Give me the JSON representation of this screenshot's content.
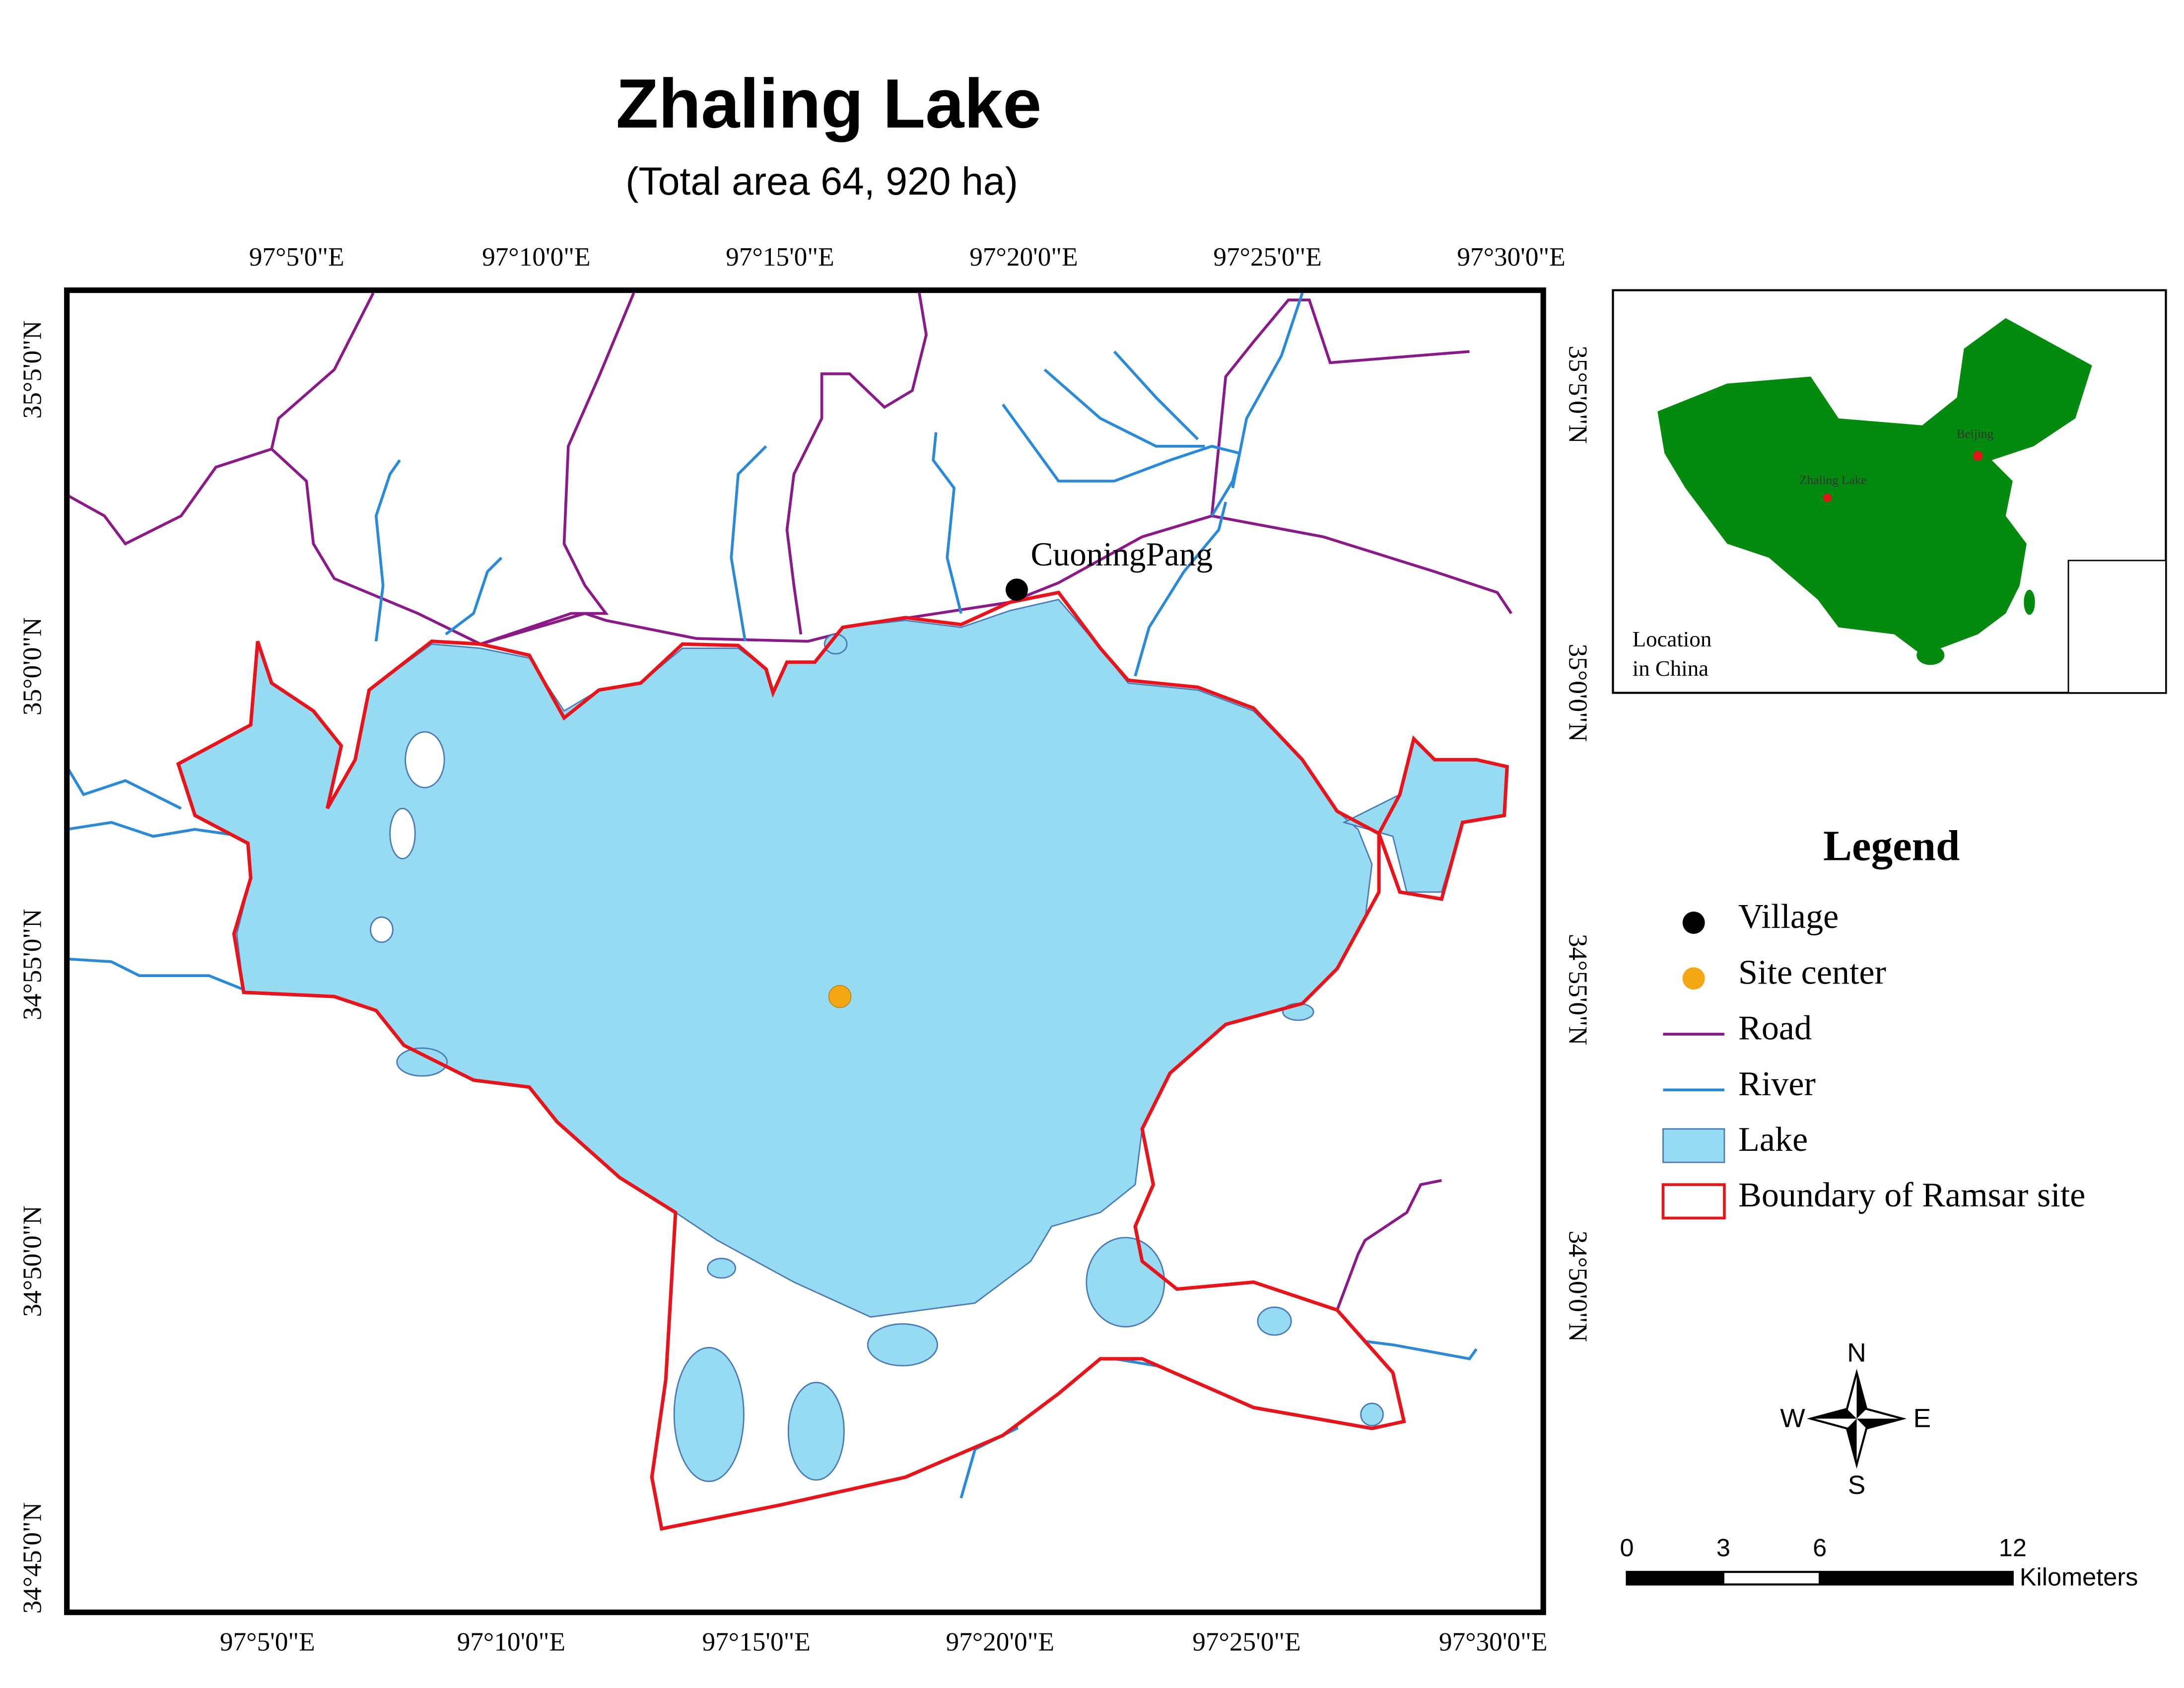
{
  "title": "Zhaling Lake",
  "subtitle": "(Total area 64, 920 ha)",
  "map": {
    "top_labels": [
      "97°5'0\"E",
      "97°10'0\"E",
      "97°15'0\"E",
      "97°20'0\"E",
      "97°25'0\"E",
      "97°30'0\"E"
    ],
    "bottom_labels": [
      "97°5'0\"E",
      "97°10'0\"E",
      "97°15'0\"E",
      "97°20'0\"E",
      "97°25'0\"E",
      "97°30'0\"E"
    ],
    "left_labels": [
      "35°5'0\"N",
      "35°0'0\"N",
      "34°55'0\"N",
      "34°50'0\"N",
      "34°45'0\"N"
    ],
    "right_labels": [
      "35°5'0\"N",
      "35°0'0\"N",
      "34°55'0\"N",
      "34°50'0\"N"
    ],
    "village": "CuoningPang"
  },
  "inset": {
    "caption": [
      "Location",
      "in China"
    ],
    "lake": "Zhaling Lake",
    "capital": "Beijing"
  },
  "legend": {
    "title": "Legend",
    "items": [
      "Village",
      "Site center",
      "Road",
      "River",
      "Lake",
      "Boundary of Ramsar site"
    ]
  },
  "compass": {
    "n": "N",
    "s": "S",
    "w": "W",
    "e": "E"
  },
  "scale": {
    "ticks": [
      0,
      3,
      6,
      12
    ],
    "unit": "Kilometers"
  }
}
